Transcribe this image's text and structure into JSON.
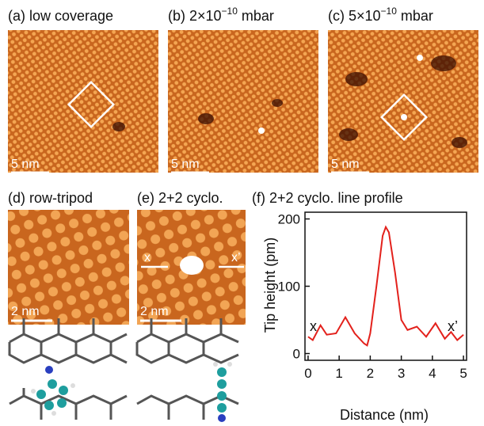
{
  "panels": {
    "a": {
      "title": "(a) low coverage",
      "scale": "5 nm"
    },
    "b": {
      "title_prefix": "(b) 2×10",
      "title_sup": "−10",
      "title_suffix": " mbar",
      "scale": "5 nm"
    },
    "c": {
      "title_prefix": "(c) 5×10",
      "title_sup": "−10",
      "title_suffix": " mbar",
      "scale": "5 nm"
    },
    "d": {
      "title": "(d) row-tripod",
      "scale": "2 nm"
    },
    "e": {
      "title": "(e) 2+2 cyclo.",
      "scale": "2 nm",
      "marker_left": "x",
      "marker_right": "x’"
    }
  },
  "chart_data": {
    "type": "line",
    "title": "(f) 2+2 cyclo. line profile",
    "x_label": "Distance (nm)",
    "y_label": "Tip height (pm)",
    "xlim": [
      -0.1,
      5.1
    ],
    "ylim": [
      -10,
      210
    ],
    "xticks": [
      0,
      1,
      2,
      3,
      4,
      5
    ],
    "yticks": [
      0,
      100,
      200
    ],
    "annotations": [
      "x",
      "x’"
    ],
    "series": [
      {
        "color": "#e3211c",
        "x": [
          0,
          0.15,
          0.4,
          0.6,
          0.9,
          1.2,
          1.5,
          1.8,
          1.9,
          2.0,
          2.2,
          2.4,
          2.5,
          2.6,
          2.8,
          3.0,
          3.2,
          3.5,
          3.8,
          4.1,
          4.4,
          4.6,
          4.8,
          5.0
        ],
        "values": [
          25,
          20,
          42,
          28,
          30,
          54,
          30,
          15,
          12,
          30,
          100,
          175,
          188,
          180,
          120,
          50,
          35,
          40,
          25,
          45,
          22,
          32,
          20,
          28
        ]
      }
    ]
  }
}
